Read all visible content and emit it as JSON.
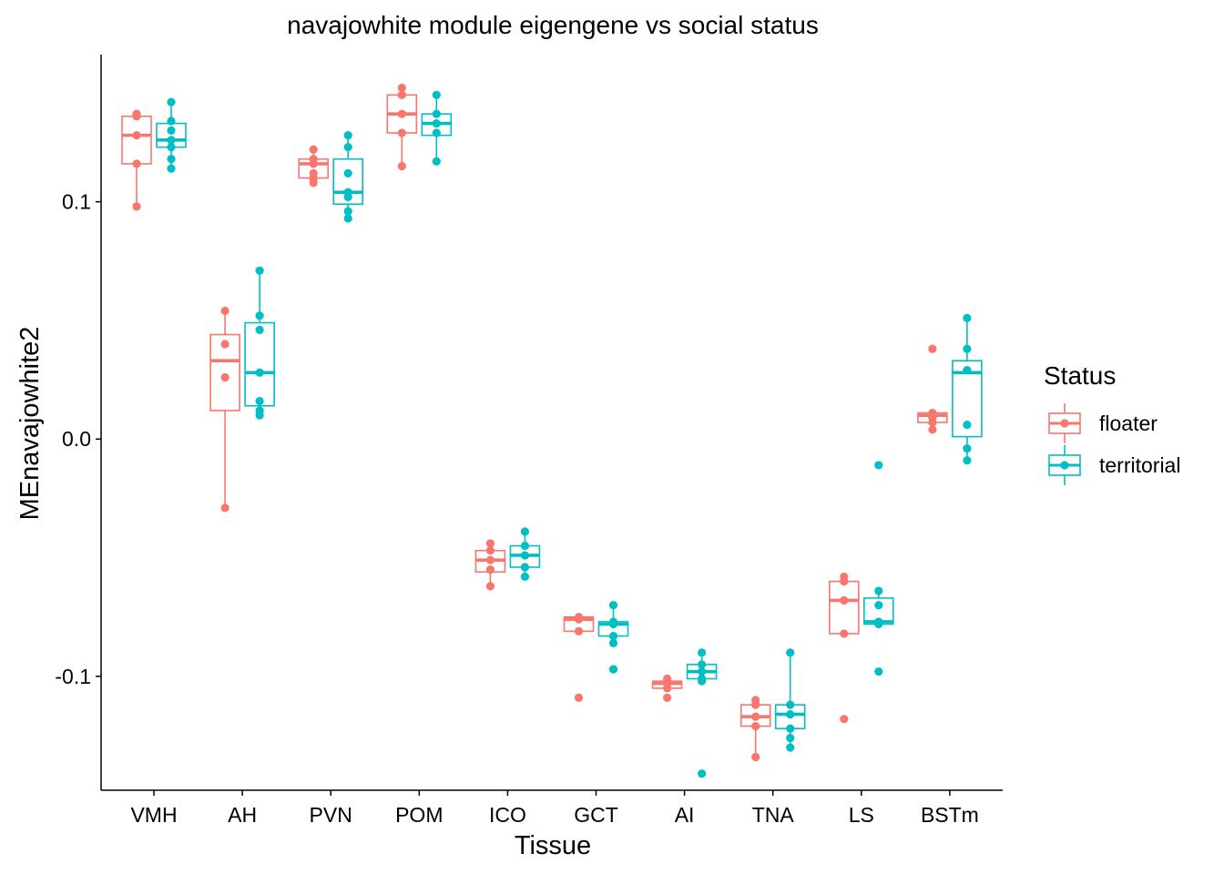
{
  "chart_data": {
    "type": "boxplot",
    "title": "navajowhite module eigengene vs social status",
    "xlabel": "Tissue",
    "ylabel": "MEnavajowhite2",
    "ylim": [
      -0.148,
      0.162
    ],
    "yticks": [
      {
        "value": 0.1,
        "label": "0.1"
      },
      {
        "value": 0.0,
        "label": "0.0"
      },
      {
        "value": -0.1,
        "label": "-0.1"
      }
    ],
    "categories": [
      "VMH",
      "AH",
      "PVN",
      "POM",
      "ICO",
      "GCT",
      "AI",
      "TNA",
      "LS",
      "BSTm"
    ],
    "legend": {
      "title": "Status",
      "position": "right",
      "entries": [
        {
          "label": "floater",
          "color": "#F8766D"
        },
        {
          "label": "territorial",
          "color": "#00BFC4"
        }
      ]
    },
    "series": [
      {
        "name": "floater",
        "color": "#F8766D",
        "boxes": [
          {
            "category": "VMH",
            "min": 0.098,
            "q1": 0.116,
            "median": 0.128,
            "q3": 0.136,
            "max": 0.137,
            "points": [
              0.137,
              0.136,
              0.128,
              0.116,
              0.098
            ]
          },
          {
            "category": "AH",
            "min": -0.029,
            "q1": 0.012,
            "median": 0.033,
            "q3": 0.044,
            "max": 0.054,
            "points": [
              0.054,
              0.04,
              0.026,
              -0.029
            ]
          },
          {
            "category": "PVN",
            "min": 0.108,
            "q1": 0.11,
            "median": 0.116,
            "q3": 0.118,
            "max": 0.122,
            "points": [
              0.122,
              0.118,
              0.116,
              0.112,
              0.11,
              0.108
            ]
          },
          {
            "category": "POM",
            "min": 0.115,
            "q1": 0.129,
            "median": 0.137,
            "q3": 0.145,
            "max": 0.148,
            "points": [
              0.148,
              0.145,
              0.137,
              0.129,
              0.115
            ]
          },
          {
            "category": "ICO",
            "min": -0.062,
            "q1": -0.056,
            "median": -0.051,
            "q3": -0.047,
            "max": -0.044,
            "points": [
              -0.044,
              -0.047,
              -0.051,
              -0.055,
              -0.062
            ]
          },
          {
            "category": "GCT",
            "min": -0.081,
            "q1": -0.081,
            "median": -0.076,
            "q3": -0.075,
            "max": -0.075,
            "points": [
              -0.075,
              -0.076,
              -0.081,
              -0.109
            ]
          },
          {
            "category": "AI",
            "min": -0.105,
            "q1": -0.105,
            "median": -0.103,
            "q3": -0.102,
            "max": -0.101,
            "points": [
              -0.101,
              -0.103,
              -0.105,
              -0.109
            ]
          },
          {
            "category": "TNA",
            "min": -0.134,
            "q1": -0.121,
            "median": -0.117,
            "q3": -0.112,
            "max": -0.11,
            "points": [
              -0.11,
              -0.112,
              -0.117,
              -0.121,
              -0.134
            ]
          },
          {
            "category": "LS",
            "min": -0.082,
            "q1": -0.082,
            "median": -0.068,
            "q3": -0.06,
            "max": -0.058,
            "points": [
              -0.058,
              -0.06,
              -0.068,
              -0.082,
              -0.118
            ]
          },
          {
            "category": "BSTm",
            "min": 0.004,
            "q1": 0.007,
            "median": 0.01,
            "q3": 0.011,
            "max": 0.011,
            "points": [
              0.038,
              0.011,
              0.01,
              0.009,
              0.007,
              0.004
            ]
          }
        ]
      },
      {
        "name": "territorial",
        "color": "#00BFC4",
        "boxes": [
          {
            "category": "VMH",
            "min": 0.114,
            "q1": 0.123,
            "median": 0.126,
            "q3": 0.133,
            "max": 0.142,
            "points": [
              0.142,
              0.134,
              0.13,
              0.126,
              0.123,
              0.118,
              0.114
            ]
          },
          {
            "category": "AH",
            "min": 0.01,
            "q1": 0.014,
            "median": 0.028,
            "q3": 0.049,
            "max": 0.071,
            "points": [
              0.071,
              0.052,
              0.046,
              0.028,
              0.016,
              0.012,
              0.01
            ]
          },
          {
            "category": "PVN",
            "min": 0.093,
            "q1": 0.099,
            "median": 0.104,
            "q3": 0.118,
            "max": 0.128,
            "points": [
              0.128,
              0.123,
              0.112,
              0.104,
              0.102,
              0.096,
              0.093
            ]
          },
          {
            "category": "POM",
            "min": 0.117,
            "q1": 0.128,
            "median": 0.133,
            "q3": 0.137,
            "max": 0.145,
            "points": [
              0.145,
              0.137,
              0.133,
              0.129,
              0.117
            ]
          },
          {
            "category": "ICO",
            "min": -0.058,
            "q1": -0.054,
            "median": -0.049,
            "q3": -0.045,
            "max": -0.039,
            "points": [
              -0.039,
              -0.045,
              -0.049,
              -0.054,
              -0.058
            ]
          },
          {
            "category": "GCT",
            "min": -0.086,
            "q1": -0.083,
            "median": -0.078,
            "q3": -0.077,
            "max": -0.07,
            "points": [
              -0.07,
              -0.077,
              -0.078,
              -0.083,
              -0.086,
              -0.097
            ]
          },
          {
            "category": "AI",
            "min": -0.102,
            "q1": -0.101,
            "median": -0.098,
            "q3": -0.095,
            "max": -0.09,
            "points": [
              -0.09,
              -0.095,
              -0.098,
              -0.101,
              -0.102,
              -0.141
            ]
          },
          {
            "category": "TNA",
            "min": -0.13,
            "q1": -0.122,
            "median": -0.116,
            "q3": -0.112,
            "max": -0.09,
            "points": [
              -0.09,
              -0.112,
              -0.116,
              -0.122,
              -0.126,
              -0.13
            ]
          },
          {
            "category": "LS",
            "min": -0.078,
            "q1": -0.078,
            "median": -0.077,
            "q3": -0.067,
            "max": -0.064,
            "points": [
              -0.011,
              -0.064,
              -0.07,
              -0.077,
              -0.078,
              -0.098
            ]
          },
          {
            "category": "BSTm",
            "min": -0.009,
            "q1": 0.001,
            "median": 0.028,
            "q3": 0.033,
            "max": 0.051,
            "points": [
              0.051,
              0.038,
              0.029,
              0.006,
              -0.004,
              -0.009
            ]
          }
        ]
      }
    ]
  }
}
